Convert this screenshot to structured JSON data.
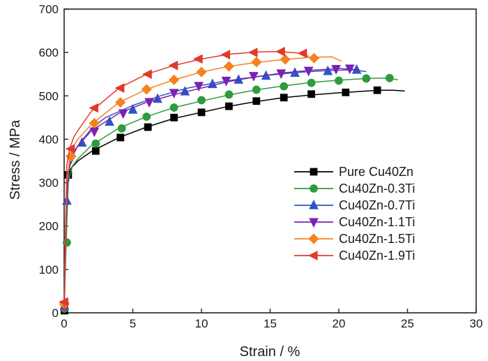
{
  "chart_data": {
    "type": "line",
    "xlabel": "Strain / %",
    "ylabel": "Stress / MPa",
    "xlim": [
      0,
      30
    ],
    "ylim": [
      0,
      700
    ],
    "xticks": [
      0,
      5,
      10,
      15,
      20,
      25,
      30
    ],
    "yticks": [
      0,
      100,
      200,
      300,
      400,
      500,
      600,
      700
    ],
    "grid": false,
    "legend_position": "center-right",
    "series": [
      {
        "name": "Pure Cu40Zn",
        "color": "#000000",
        "marker": "square",
        "x": [
          0,
          0.05,
          0.1,
          0.2,
          0.3,
          0.5,
          1,
          2,
          4,
          6,
          8,
          10,
          12,
          14,
          16,
          18,
          20,
          22,
          23,
          24,
          24.8
        ],
        "y": [
          0,
          60,
          180,
          290,
          318,
          333,
          350,
          372,
          404,
          428,
          448,
          462,
          476,
          487,
          496,
          502,
          507,
          511,
          513,
          513,
          511
        ],
        "markers_x": [
          0.02,
          0.3,
          2.3,
          4.1,
          6.1,
          8.0,
          10.0,
          12.0,
          14.0,
          16.0,
          18.0,
          20.5,
          22.8
        ],
        "markers_y": [
          5,
          318,
          373,
          404,
          428,
          450,
          462,
          476,
          488,
          496,
          504,
          508,
          513
        ]
      },
      {
        "name": "Cu40Zn-0.3Ti",
        "color": "#2e9b3c",
        "marker": "circle",
        "x": [
          0,
          0.05,
          0.15,
          0.3,
          0.6,
          1,
          2,
          4,
          6,
          8,
          10,
          12,
          14,
          16,
          18,
          20,
          22,
          23.5,
          24.3
        ],
        "y": [
          0,
          60,
          165,
          300,
          338,
          355,
          386,
          426,
          452,
          473,
          488,
          502,
          514,
          523,
          531,
          536,
          540,
          541,
          537
        ],
        "markers_x": [
          0.02,
          0.2,
          2.3,
          4.2,
          6.0,
          8.0,
          10.0,
          12.0,
          14.0,
          16.0,
          18.0,
          20.0,
          22.0,
          23.7
        ],
        "markers_y": [
          10,
          162,
          390,
          425,
          452,
          473,
          490,
          503,
          514,
          522,
          530,
          535,
          540,
          541
        ]
      },
      {
        "name": "Cu40Zn-0.7Ti",
        "color": "#2f56c4",
        "marker": "triangle-up",
        "x": [
          0,
          0.05,
          0.2,
          0.35,
          0.6,
          1,
          2,
          3,
          5,
          7,
          9,
          11,
          13,
          15,
          17,
          19,
          21,
          22
        ],
        "y": [
          0,
          80,
          258,
          330,
          365,
          385,
          425,
          450,
          478,
          500,
          518,
          530,
          540,
          548,
          554,
          558,
          560,
          556
        ],
        "markers_x": [
          0.02,
          0.2,
          1.3,
          3.3,
          5.0,
          6.8,
          8.8,
          10.8,
          12.7,
          14.7,
          16.8,
          19.2,
          21.3
        ],
        "markers_y": [
          15,
          258,
          392,
          440,
          468,
          493,
          510,
          527,
          537,
          546,
          553,
          557,
          560
        ]
      },
      {
        "name": "Cu40Zn-1.1Ti",
        "color": "#7a22b0",
        "marker": "triangle-down",
        "x": [
          0,
          0.05,
          0.2,
          0.35,
          0.6,
          1,
          2,
          4,
          6,
          8,
          10,
          12,
          14,
          16,
          18,
          20,
          21.5
        ],
        "y": [
          0,
          80,
          260,
          330,
          360,
          385,
          420,
          460,
          485,
          503,
          518,
          533,
          544,
          553,
          559,
          563,
          560
        ],
        "markers_x": [
          0.02,
          0.5,
          2.2,
          4.3,
          6.2,
          8.0,
          9.8,
          11.8,
          13.8,
          15.8,
          17.8,
          19.8,
          20.8
        ],
        "markers_y": [
          15,
          355,
          418,
          460,
          486,
          507,
          523,
          535,
          546,
          552,
          558,
          562,
          563
        ]
      },
      {
        "name": "Cu40Zn-1.5Ti",
        "color": "#f58220",
        "marker": "diamond",
        "x": [
          0,
          0.05,
          0.2,
          0.4,
          0.7,
          1,
          2,
          4,
          6,
          8,
          10,
          12,
          14,
          16,
          18,
          19.5,
          20.2
        ],
        "y": [
          0,
          100,
          300,
          355,
          385,
          400,
          435,
          485,
          515,
          537,
          555,
          568,
          577,
          584,
          589,
          590,
          580
        ],
        "markers_x": [
          0.02,
          0.5,
          2.2,
          4.1,
          6.0,
          8.0,
          10.0,
          12.0,
          14.0,
          16.1,
          18.2
        ],
        "markers_y": [
          20,
          360,
          437,
          485,
          515,
          537,
          555,
          568,
          578,
          584,
          587
        ]
      },
      {
        "name": "Cu40Zn-1.9Ti",
        "color": "#e03a2b",
        "marker": "triangle-left",
        "x": [
          0,
          0.05,
          0.2,
          0.4,
          0.7,
          1,
          2,
          4,
          6,
          8,
          10,
          12,
          14,
          15,
          16,
          17,
          17.8
        ],
        "y": [
          0,
          120,
          340,
          378,
          405,
          420,
          465,
          518,
          550,
          570,
          585,
          596,
          601,
          602,
          601,
          599,
          591
        ],
        "markers_x": [
          0.02,
          0.5,
          2.2,
          4.1,
          6.1,
          8.0,
          9.8,
          11.8,
          13.8,
          15.8,
          17.4
        ],
        "markers_y": [
          25,
          378,
          472,
          518,
          550,
          570,
          585,
          595,
          600,
          602,
          598
        ]
      }
    ]
  }
}
